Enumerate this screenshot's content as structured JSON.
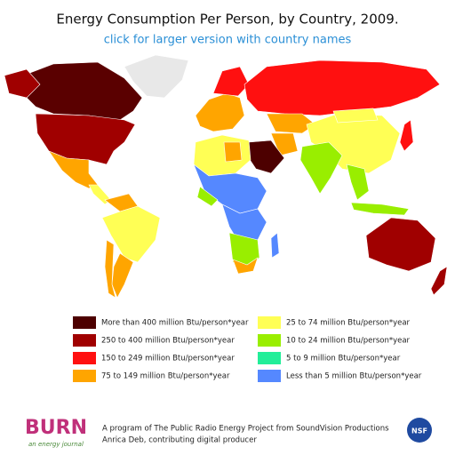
{
  "header": {
    "title": "Energy Consumption Per Person, by Country, 2009.",
    "link": "click for larger version with country names"
  },
  "legend": [
    {
      "label": "More than 400 million Btu/person*year",
      "color": "#4d0000"
    },
    {
      "label": "250 to 400 million Btu/person*year",
      "color": "#a00000"
    },
    {
      "label": "150 to 249 million Btu/person*year",
      "color": "#ff1010"
    },
    {
      "label": "75 to 149 million Btu/person*year",
      "color": "#ffa500"
    },
    {
      "label": "25 to 74 million Btu/person*year",
      "color": "#ffff55"
    },
    {
      "label": "10 to 24 million Btu/person*year",
      "color": "#99ee00"
    },
    {
      "label": "5 to 9 million Btu/person*year",
      "color": "#22ee99"
    },
    {
      "label": "Less than 5 million Btu/person*year",
      "color": "#5588ff"
    }
  ],
  "footer": {
    "logo": "BURN",
    "logo_tagline": "an energy journal",
    "credit_1": "A program of The Public Radio Energy Project from SoundVision Productions",
    "credit_2": "Anrica Deb, contributing digital producer",
    "badge": "NSF"
  }
}
